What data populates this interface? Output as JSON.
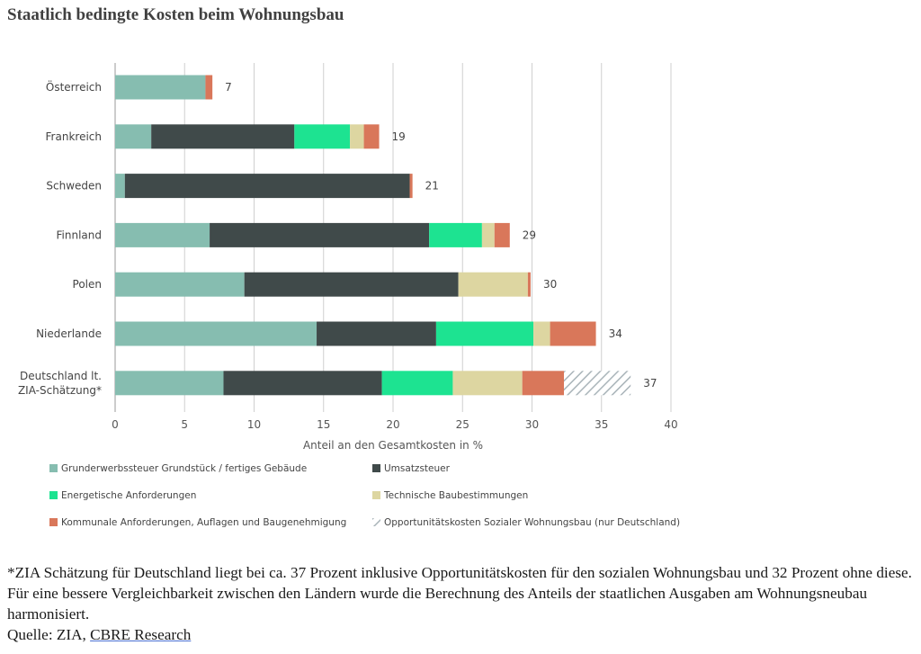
{
  "title": "Staatlich bedingte Kosten beim Wohnungsbau",
  "chart_data": {
    "type": "bar",
    "orientation": "horizontal",
    "stacked": true,
    "xlabel": "Anteil an den Gesamtkosten in %",
    "xlim": [
      0,
      40
    ],
    "xticks": [
      0,
      5,
      10,
      15,
      20,
      25,
      30,
      35,
      40
    ],
    "grid": "vertical",
    "legend_position": "bottom",
    "categories": [
      "Österreich",
      "Frankreich",
      "Schweden",
      "Finnland",
      "Polen",
      "Niederlande",
      "Deutschland lt.\nZIA-Schätzung*"
    ],
    "series": [
      {
        "name": "Grunderwerbssteuer Grundstück / fertiges Gebäude",
        "color": "#86bdb0",
        "values": [
          6.5,
          2.6,
          0.7,
          6.8,
          9.3,
          14.5,
          7.8
        ]
      },
      {
        "name": "Umsatzsteuer",
        "color": "#404a4a",
        "values": [
          0,
          10.3,
          20.5,
          15.8,
          15.4,
          8.6,
          11.4
        ]
      },
      {
        "name": "Energetische Anforderungen",
        "color": "#1de391",
        "values": [
          0,
          4.0,
          0,
          3.8,
          0,
          7.0,
          5.1
        ]
      },
      {
        "name": "Technische Baubestimmungen",
        "color": "#ddd6a1",
        "values": [
          0,
          1.0,
          0,
          0.9,
          5.0,
          1.2,
          5.0
        ]
      },
      {
        "name": "Kommunale Anforderungen, Auflagen und Baugenehmigung",
        "color": "#d9775a",
        "values": [
          0.5,
          1.1,
          0.2,
          1.1,
          0.2,
          3.3,
          3.0
        ]
      },
      {
        "name": "Opportunitätskosten Sozialer Wohnungsbau (nur Deutschland)",
        "color": "#a9b4b9",
        "pattern": "hatched",
        "values": [
          0,
          0,
          0,
          0,
          0,
          0,
          4.8
        ]
      }
    ],
    "totals": [
      7,
      19,
      21,
      29,
      30,
      34,
      37
    ]
  },
  "footnote": {
    "text": "*ZIA Schätzung für Deutschland liegt bei ca. 37 Prozent inklusive Opportunitätskosten für den sozialen Wohnungsbau und 32 Prozent ohne diese. Für eine bessere Vergleichbarkeit zwischen den Ländern wurde die Berechnung des Anteils der staatlichen Ausgaben am Wohnungsneubau harmonisiert.",
    "source_prefix": "Quelle: ZIA, ",
    "source_link": "CBRE Research"
  }
}
